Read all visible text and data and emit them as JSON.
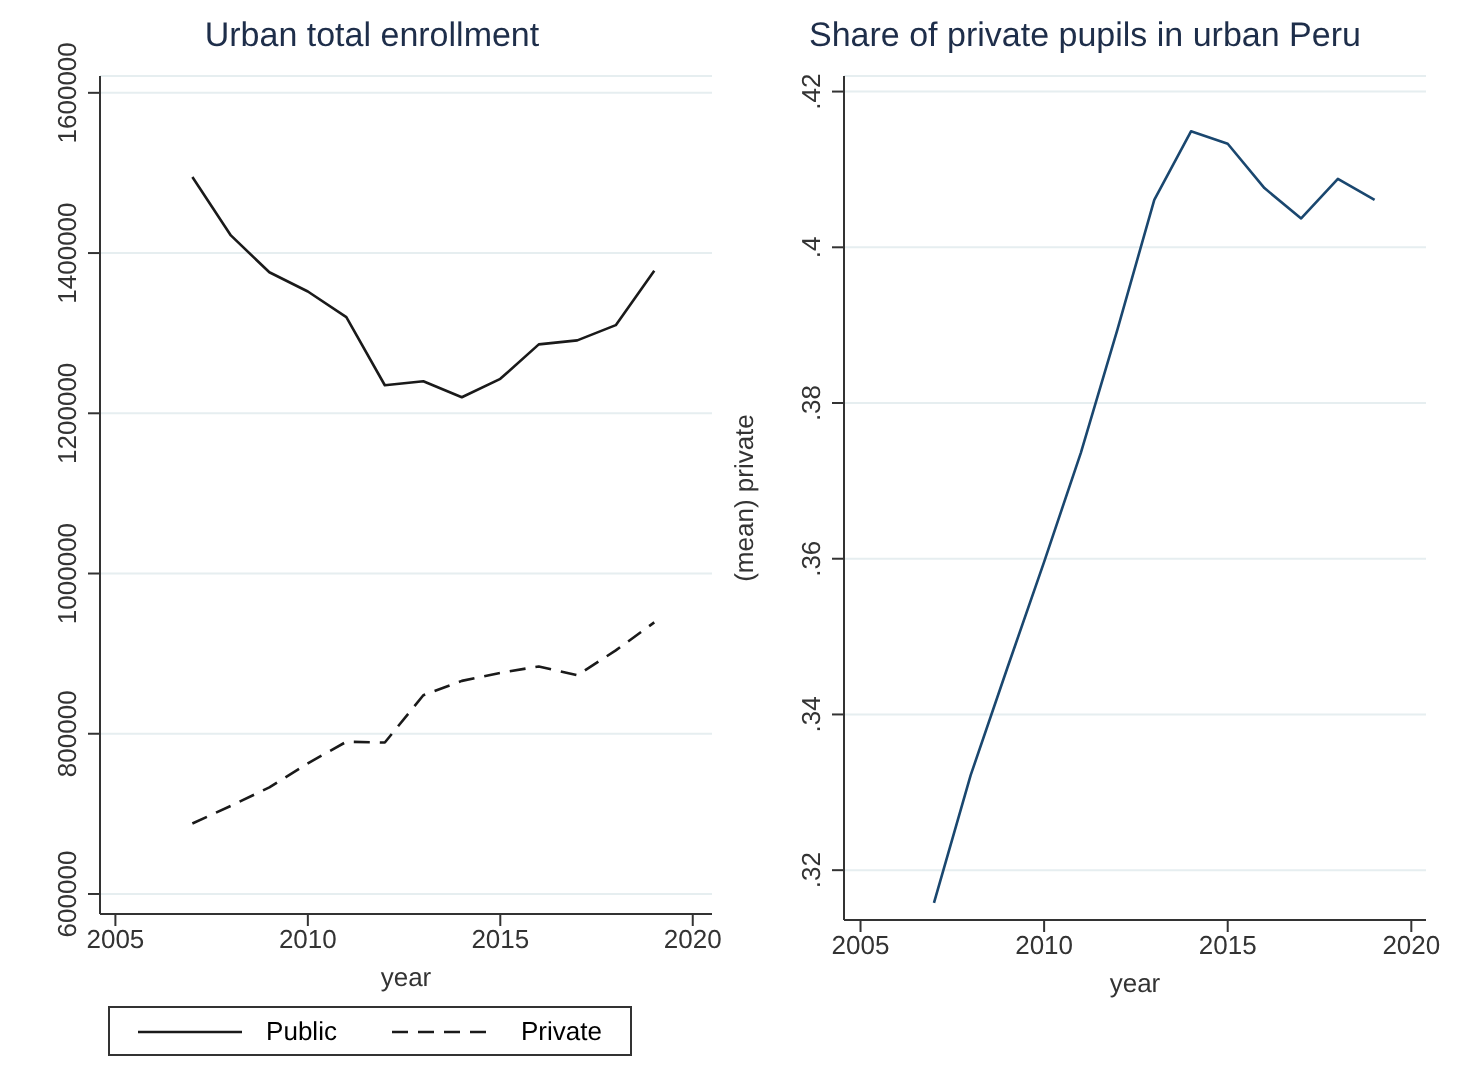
{
  "chart_data": [
    {
      "type": "line",
      "title": "Urban total enrollment",
      "xlabel": "year",
      "x": [
        2007,
        2008,
        2009,
        2010,
        2011,
        2012,
        2013,
        2014,
        2015,
        2016,
        2017,
        2018,
        2019
      ],
      "series": [
        {
          "name": "Public",
          "color": "#1a1a1a",
          "line_style": "solid",
          "values": [
            1495000,
            1422000,
            1376000,
            1352000,
            1320000,
            1235000,
            1240000,
            1220000,
            1243000,
            1286000,
            1291000,
            1310000,
            1378000
          ]
        },
        {
          "name": "Private",
          "color": "#1a1a1a",
          "line_style": "dashed",
          "values": [
            688000,
            710000,
            733000,
            763000,
            790000,
            789000,
            848000,
            866000,
            876000,
            884000,
            873000,
            904000,
            939000
          ]
        }
      ],
      "xlim": [
        2004.6,
        2020.5
      ],
      "xticks": [
        2005,
        2010,
        2015,
        2020
      ],
      "ylim": [
        575000,
        1621000
      ],
      "yticks": [
        600000,
        800000,
        1000000,
        1200000,
        1400000,
        1600000
      ],
      "grid": "y",
      "legend": "bottom",
      "marker": "none"
    },
    {
      "type": "line",
      "title": "Share of private pupils in urban Peru",
      "xlabel": "year",
      "ylabel": "(mean) private",
      "x": [
        2007,
        2008,
        2009,
        2010,
        2011,
        2012,
        2013,
        2014,
        2015,
        2016,
        2017,
        2018,
        2019
      ],
      "series": [
        {
          "color": "#1a476f",
          "values": [
            0.3158,
            0.3322,
            0.346,
            0.3596,
            0.3736,
            0.3895,
            0.4061,
            0.4149,
            0.4133,
            0.4076,
            0.4037,
            0.4088,
            0.4061
          ]
        }
      ],
      "xlim": [
        2004.55,
        2020.4
      ],
      "xticks": [
        2005,
        2010,
        2015,
        2020
      ],
      "ylim": [
        0.3136,
        0.422
      ],
      "yticks": [
        {
          "value": 0.32,
          "label": ".32"
        },
        {
          "value": 0.34,
          "label": ".34"
        },
        {
          "value": 0.36,
          "label": ".36"
        },
        {
          "value": 0.38,
          "label": ".38"
        },
        {
          "value": 0.4,
          "label": ".4"
        },
        {
          "value": 0.42,
          "label": ".42"
        }
      ],
      "grid": "y",
      "legend": false,
      "marker": "none"
    }
  ]
}
